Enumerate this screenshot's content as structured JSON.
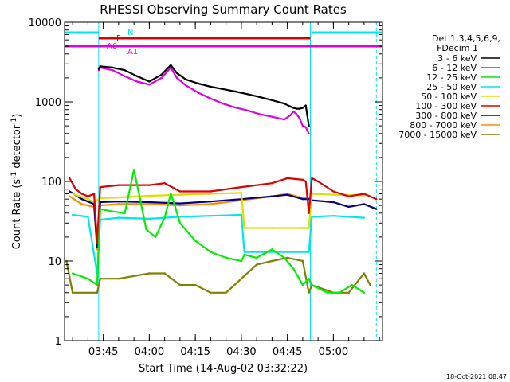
{
  "chart_data": {
    "type": "line",
    "title": "RHESSI Observing Summary Count Rates",
    "xlabel": "Start Time (14-Aug-02 03:32:22)",
    "ylabel_main": "Count Rate (s",
    "ylabel_sup1": "-1",
    "ylabel_mid": " detector",
    "ylabel_sup2": "-1",
    "ylabel_end": ")",
    "y_scale": "log",
    "ylim": [
      1,
      10000
    ],
    "xlim": [
      "03:32:22",
      "05:16:00"
    ],
    "x_ticks": [
      "03:45",
      "04:00",
      "04:15",
      "04:30",
      "04:45",
      "05:00"
    ],
    "y_ticks": [
      "1",
      "10",
      "100",
      "1000",
      "10000"
    ],
    "legend_placement": "right",
    "legend_header": [
      "Det 1,3,4,5,6,9,",
      "FDecim 1"
    ],
    "flags": [
      {
        "label": "N",
        "color": "#00e5ee",
        "segments": [
          [
            "03:32:22",
            "03:43:30"
          ],
          [
            "04:53:00",
            "05:16:00"
          ]
        ],
        "level": "top"
      },
      {
        "label": "F",
        "color": "#dd0000",
        "segments": [
          [
            "03:43:30",
            "04:52:30"
          ]
        ],
        "level": "upper"
      },
      {
        "label": "A0",
        "color": "#e000e0",
        "segments": [
          [
            "03:32:22",
            "03:43:30"
          ]
        ],
        "level": "middle"
      },
      {
        "label": "A1",
        "color": "#e000e0",
        "segments": [
          [
            "03:43:30",
            "05:16:00"
          ]
        ],
        "level": "middle"
      }
    ],
    "series": [
      {
        "name": "3 - 6 keV",
        "color": "#000000",
        "x": [
          "03:43:30",
          "03:44:00",
          "03:48",
          "03:52",
          "03:56",
          "04:00",
          "04:04",
          "04:07",
          "04:09",
          "04:12",
          "04:16",
          "04:20",
          "04:24",
          "04:28",
          "04:32",
          "04:36",
          "04:40",
          "04:44",
          "04:46",
          "04:47",
          "04:48",
          "04:49",
          "04:50",
          "04:51",
          "04:52"
        ],
        "y": [
          2600,
          2800,
          2700,
          2500,
          2100,
          1800,
          2200,
          2900,
          2300,
          1900,
          1700,
          1550,
          1450,
          1350,
          1250,
          1150,
          1050,
          950,
          870,
          840,
          820,
          820,
          840,
          900,
          500
        ]
      },
      {
        "name": "6 - 12 keV",
        "color": "#e000e0",
        "x": [
          "03:43:30",
          "03:44:00",
          "03:48",
          "03:52",
          "03:56",
          "04:00",
          "04:04",
          "04:07",
          "04:09",
          "04:12",
          "04:16",
          "04:20",
          "04:24",
          "04:28",
          "04:32",
          "04:36",
          "04:40",
          "04:44",
          "04:46",
          "04:47",
          "04:48",
          "04:49",
          "04:50",
          "04:51",
          "04:52"
        ],
        "y": [
          2500,
          2700,
          2500,
          2100,
          1800,
          1650,
          2000,
          2700,
          2000,
          1600,
          1300,
          1100,
          950,
          850,
          780,
          700,
          650,
          600,
          680,
          760,
          700,
          620,
          500,
          480,
          400
        ]
      },
      {
        "name": "12 - 25 keV",
        "color": "#00ee00",
        "x": [
          "03:35",
          "03:40",
          "03:43",
          "03:44",
          "03:48",
          "03:52",
          "03:55",
          "03:57",
          "03:59",
          "04:02",
          "04:05",
          "04:07",
          "04:08",
          "04:10",
          "04:15",
          "04:20",
          "04:25",
          "04:30",
          "04:31",
          "04:35",
          "04:40",
          "04:44",
          "04:47",
          "04:50",
          "04:52",
          "04:53",
          "04:58",
          "05:02",
          "05:06",
          "05:10"
        ],
        "y": [
          7,
          6,
          5,
          45,
          42,
          40,
          140,
          60,
          25,
          20,
          35,
          70,
          55,
          30,
          18,
          13,
          11,
          10,
          12,
          11,
          14,
          11,
          8,
          5,
          6,
          5,
          4,
          4,
          5,
          4
        ]
      },
      {
        "name": "25 - 50 keV",
        "color": "#00e5ee",
        "x": [
          "03:35",
          "03:40",
          "03:43",
          "03:44",
          "03:50",
          "04:00",
          "04:10",
          "04:20",
          "04:30",
          "04:31",
          "04:40",
          "04:50",
          "04:52",
          "04:53",
          "05:00",
          "05:10"
        ],
        "y": [
          38,
          36,
          7,
          33,
          35,
          34,
          36,
          37,
          38,
          13,
          13,
          13,
          13,
          36,
          37,
          35
        ]
      },
      {
        "name": "50 - 100 keV",
        "color": "#dddd00",
        "x": [
          "03:35",
          "03:40",
          "03:42",
          "03:44",
          "03:50",
          "04:00",
          "04:10",
          "04:20",
          "04:30",
          "04:31",
          "04:40",
          "04:50",
          "04:52",
          "04:53",
          "05:00",
          "05:10"
        ],
        "y": [
          70,
          60,
          55,
          62,
          63,
          66,
          68,
          70,
          72,
          26,
          26,
          26,
          26,
          70,
          68,
          67
        ]
      },
      {
        "name": "100 - 300 keV",
        "color": "#dd0000",
        "x": [
          "03:34",
          "03:36",
          "03:38",
          "03:40",
          "03:42",
          "03:43",
          "03:44",
          "03:50",
          "04:00",
          "04:05",
          "04:10",
          "04:20",
          "04:30",
          "04:40",
          "04:45",
          "04:50",
          "04:51",
          "04:52",
          "04:53",
          "04:55",
          "05:00",
          "05:05",
          "05:10",
          "05:14"
        ],
        "y": [
          110,
          80,
          70,
          65,
          70,
          17,
          85,
          90,
          90,
          95,
          75,
          75,
          85,
          95,
          110,
          105,
          100,
          40,
          110,
          100,
          75,
          65,
          70,
          60
        ]
      },
      {
        "name": "300 - 800 keV",
        "color": "#00008b",
        "x": [
          "03:34",
          "03:38",
          "03:42",
          "03:43",
          "03:44",
          "03:50",
          "04:00",
          "04:10",
          "04:20",
          "04:30",
          "04:40",
          "04:45",
          "04:50",
          "04:52",
          "04:53",
          "05:00",
          "05:05",
          "05:10",
          "05:14"
        ],
        "y": [
          75,
          60,
          52,
          15,
          55,
          56,
          55,
          53,
          56,
          60,
          65,
          68,
          60,
          60,
          58,
          55,
          48,
          52,
          45
        ]
      },
      {
        "name": "800 - 7000 keV",
        "color": "#ff8c00",
        "x": [
          "03:34",
          "03:38",
          "03:42",
          "03:43",
          "03:44",
          "03:50",
          "04:00",
          "04:10",
          "04:20",
          "04:30",
          "04:40",
          "04:45",
          "04:50",
          "04:52",
          "04:53",
          "05:00",
          "05:05",
          "05:10",
          "05:14"
        ],
        "y": [
          65,
          52,
          48,
          14,
          50,
          52,
          52,
          50,
          52,
          58,
          65,
          70,
          62,
          62,
          58,
          55,
          48,
          52,
          45
        ]
      },
      {
        "name": "7000 - 15000 keV",
        "color": "#808000",
        "x": [
          "03:33",
          "03:35",
          "03:40",
          "03:43",
          "03:44",
          "03:50",
          "04:00",
          "04:05",
          "04:10",
          "04:15",
          "04:20",
          "04:25",
          "04:30",
          "04:35",
          "04:40",
          "04:45",
          "04:50",
          "04:52",
          "04:53",
          "05:00",
          "05:05",
          "05:10",
          "05:12"
        ],
        "y": [
          10,
          4,
          4,
          4,
          6,
          6,
          7,
          7,
          5,
          5,
          4,
          4,
          6,
          9,
          10,
          11,
          10,
          4,
          5,
          4,
          4,
          7,
          5
        ]
      }
    ]
  },
  "footer_date": "18-Oct-2021 08:47"
}
